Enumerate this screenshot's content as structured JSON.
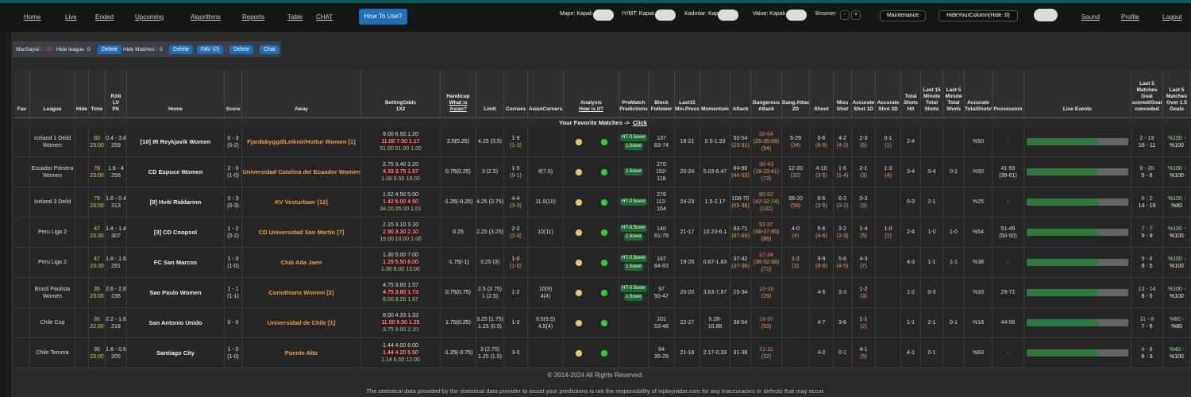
{
  "nav": {
    "items": [
      "Home",
      "Live",
      "Ended",
      "Upcoming",
      "Algorithms",
      "Reports",
      "Table",
      "CHAT"
    ],
    "button": "How To Use?",
    "toggles": [
      "Major: Kapalı",
      "IY/MT: Kapalı",
      "Kadınlar: Kapalı",
      "Value: Kapalı"
    ],
    "browser": "Browser",
    "minus": "-",
    "plus": "+",
    "maintenance": "Maintenance",
    "hide_column": "HideYourColumn(Hide :0)",
    "right": [
      "Sound",
      "Profile",
      "Logout"
    ]
  },
  "toolbar": {
    "count_label": "MacSayisi :",
    "count": "(8)",
    "hide_league": "Hide league :",
    "hide_league_count": "0",
    "delete1": "Delete",
    "hide_matches": "Hide Matches :",
    "hide_matches_count": "0",
    "delete2": "Delete",
    "fav": "FAV (0)",
    "comma": ",",
    "delete3": "Delete",
    "chat": "Chat"
  },
  "table": {
    "headers": [
      [
        "Fav"
      ],
      [
        "League"
      ],
      [
        "Hide"
      ],
      [
        "Time"
      ],
      [
        "RX6",
        "LV",
        "PK"
      ],
      [
        "Home"
      ],
      [
        "Score"
      ],
      [
        "Away"
      ],
      [
        "BettingOdds",
        "1X2"
      ],
      [
        "Handicap",
        "What is",
        "Asian?"
      ],
      [
        "Limit"
      ],
      [
        "Corners"
      ],
      [
        "AsianCorners"
      ],
      [
        "Analysis",
        "How is it?"
      ],
      [
        "PreMatch",
        "Predictions"
      ],
      [
        "Block",
        "Follower"
      ],
      [
        "Last15",
        "Min.Press."
      ],
      [
        "Momentum"
      ],
      [
        "Attack"
      ],
      [
        "Dangerous",
        "Attack"
      ],
      [
        "Dang.Attack",
        "2D"
      ],
      [
        "Shoot"
      ],
      [
        "Miss",
        "Shot"
      ],
      [
        "Accurate",
        "Shot 1D"
      ],
      [
        "Accurate",
        "Shot 2D"
      ],
      [
        "Total",
        "Shots",
        "Hit"
      ],
      [
        "Last 15",
        "Minute",
        "Total",
        "Shots"
      ],
      [
        "Last 5",
        "Minute",
        "Total",
        "Shots"
      ],
      [
        "Accurate",
        "TotalShots%"
      ],
      [
        "Possession"
      ],
      [
        "Live Events"
      ],
      [
        "Last 5",
        "Matches",
        "Goal",
        "scored/Goal",
        "conceded"
      ],
      [
        "Last 5",
        "Matches",
        "Over 1.5",
        "Goals"
      ]
    ],
    "favorite": "Your Favorite Matches ->",
    "favorite_link": "Click",
    "rows": [
      [
        [],
        [
          "Iceland 1 Deild",
          "Women"
        ],
        [],
        [
          "80",
          "23:00"
        ],
        [
          "0.4 - 3.8",
          "259"
        ],
        [
          "[10] IR Reykjavik Women"
        ],
        [
          "0 - 3",
          "(0-2)"
        ],
        [
          "Fjardabyggd/Leiknir/Hottur Women [1]"
        ],
        [
          "9.00 6.50 1.20",
          "11.00 7.50 1.17",
          "51.00 51.00 1.00"
        ],
        [
          "2.5(0.25)"
        ],
        [
          "4.25 (3.5)"
        ],
        [
          "1-9",
          "(1-3)"
        ],
        [],
        [],
        [
          "HT-0.5over",
          "1.5over"
        ],
        [
          "137",
          "63-74"
        ],
        [
          "18-21"
        ],
        [
          "0.5-1.33"
        ],
        [
          "50-54",
          "(23-31)"
        ],
        [
          "30-64",
          "(25-35:69)",
          "(94)"
        ],
        [
          "5-29",
          "(34)"
        ],
        [
          "6-6",
          "(6-5)"
        ],
        [
          "4-2",
          "(4-2)"
        ],
        [
          "2-3",
          "(5)"
        ],
        [
          "0-1",
          "(1)"
        ],
        [
          "2-4"
        ],
        [],
        [],
        [
          "%50"
        ],
        [
          "-"
        ],
        [],
        [
          "2 - 19",
          "16 - 11"
        ],
        [
          "%100 -",
          "%100"
        ]
      ],
      [
        [],
        [
          "Ecuador Primera",
          "Women"
        ],
        [],
        [
          "78",
          "23:00"
        ],
        [
          "1.6 - 4",
          "256"
        ],
        [
          "CD Espuce Women"
        ],
        [
          "2 - 0",
          "(1-0)"
        ],
        [
          "Universidad Catolica del Ecuador Women"
        ],
        [
          "2.75 3.40 2.20",
          "4.33 3.75 1.67",
          "1.08 8.50 19.00"
        ],
        [
          "0.75(0.25)"
        ],
        [
          "3 (2.5)"
        ],
        [
          "1-5",
          "(0-1)"
        ],
        [
          "8(7.5)"
        ],
        [],
        [
          "1.5over"
        ],
        [
          "270",
          "152-",
          "118"
        ],
        [
          "20-24"
        ],
        [
          "5.03-6.47"
        ],
        [
          "84-90",
          "(44-53)"
        ],
        [
          "30-43",
          "(18-23:41)",
          "(73)"
        ],
        [
          "12-20",
          "(32)"
        ],
        [
          "4-10",
          "(3-5)"
        ],
        [
          "1-6",
          "(1-4)"
        ],
        [
          "2-1",
          "(3)"
        ],
        [
          "1-3",
          "(4)"
        ],
        [
          "3-4"
        ],
        [
          "0-4"
        ],
        [
          "0-1"
        ],
        [
          "%50"
        ],
        [
          "41-59",
          "(39-61)"
        ],
        [],
        [
          "8 - 20",
          "5 - 6"
        ],
        [
          "%100 -",
          "%100"
        ]
      ],
      [
        [],
        [
          "Iceland 3 Deild"
        ],
        [],
        [
          "79",
          "23:00"
        ],
        [
          "1.6 - 0.4",
          "313"
        ],
        [
          "[9] Hviti Riddarinn"
        ],
        [
          "0 - 3",
          "(0-3)"
        ],
        [
          "KV Vesturbaer [12]"
        ],
        [
          "1.62 4.50 5.00",
          "1.42 5.00 4.50",
          "34.00 26.00 1.01"
        ],
        [
          "-1.25(-0.25)"
        ],
        [
          "4.25 (3.75)"
        ],
        [
          "4-4",
          "(3-3)"
        ],
        [
          "11.0(10)"
        ],
        [],
        [
          "HT-0.5over"
        ],
        [
          "276",
          "112-",
          "164"
        ],
        [
          "24-23"
        ],
        [
          "1.5-2.17"
        ],
        [
          "108-70",
          "(65-38)"
        ],
        [
          "80-52",
          "(42-32:74)",
          "(132)"
        ],
        [
          "38-20",
          "(58)"
        ],
        [
          "6-6",
          "(3-5)"
        ],
        [
          "6-3",
          "(3-2)"
        ],
        [
          "0-3",
          "(3)"
        ],
        [],
        [
          "0-3"
        ],
        [
          "2-1"
        ],
        [],
        [
          "%25"
        ],
        [
          "-"
        ],
        [],
        [
          "8 - 2",
          "14 - 19"
        ],
        [
          "%100 -",
          "%80"
        ]
      ],
      [
        [],
        [
          "Peru Liga 2"
        ],
        [],
        [
          "47",
          "23:30"
        ],
        [
          "1.4 - 1.4",
          "307"
        ],
        [
          "[3] CD Coopsol"
        ],
        [
          "1 - 2",
          "(0-2)"
        ],
        [
          "CD Universidad San Martin [7]"
        ],
        [
          "2.15 3.10 3.10",
          "2.90 3.30 2.10",
          "19.00 10.00 1.06"
        ],
        [
          "0.25"
        ],
        [
          "2.25 (3.25)"
        ],
        [
          "2-2",
          "(2-4)"
        ],
        [
          "10(11)"
        ],
        [],
        [
          "HT-0.5over",
          "1.5over"
        ],
        [
          "140",
          "61-79"
        ],
        [
          "21-17"
        ],
        [
          "10.23-6.1"
        ],
        [
          "93-71",
          "(87-69)"
        ],
        [
          "52-37",
          "(48-37:85)",
          "(89)"
        ],
        [
          "4-0",
          "(4)"
        ],
        [
          "5-6",
          "(4-6)"
        ],
        [
          "3-2",
          "(2-3)"
        ],
        [
          "1-4",
          "(5)"
        ],
        [
          "1-0",
          "(1)"
        ],
        [
          "2-4"
        ],
        [
          "1-0"
        ],
        [
          "1-0"
        ],
        [
          "%54"
        ],
        [
          "51-49",
          "(50-50)"
        ],
        [],
        [
          "7 - 7",
          "9 - 9"
        ],
        [
          "%100 -",
          "%100"
        ]
      ],
      [
        [],
        [
          "Peru Liga 2"
        ],
        [],
        [
          "47",
          "23:30"
        ],
        [
          "1.8 - 1.6",
          "291"
        ],
        [
          "FC San Marcos"
        ],
        [
          "1 - 0",
          "(1-0)"
        ],
        [
          "Club Ada Jaen"
        ],
        [
          "1.30 5.00 7.00",
          "1.29 5.50 8.00",
          "1.00 8.00 15.00"
        ],
        [
          "-1.75(-1)"
        ],
        [
          "3.25 (3)"
        ],
        [
          "1-0",
          "(1-0)"
        ],
        [],
        [],
        [
          "HT-0.5over",
          "1.5over"
        ],
        [
          "167",
          "84-83"
        ],
        [
          "19-20"
        ],
        [
          "0.67-1.83"
        ],
        [
          "37-42",
          "(37-38)"
        ],
        [
          "37-34",
          "(36-32:68)",
          "(71)"
        ],
        [
          "1-2",
          "(3)"
        ],
        [
          "9-9",
          "(8-8)"
        ],
        [
          "5-6",
          "(4-5)"
        ],
        [
          "4-3",
          "(7)"
        ],
        [],
        [
          "4-3"
        ],
        [
          "1-1"
        ],
        [
          "1-1"
        ],
        [
          "%38"
        ],
        [
          "-"
        ],
        [],
        [
          "9 - 8",
          "8 - 5"
        ],
        [
          "%100 -",
          "%100"
        ]
      ],
      [
        [],
        [
          "Brazil Paulista",
          "Women"
        ],
        [],
        [
          "35",
          "23:00"
        ],
        [
          "2.6 - 2.8",
          "236"
        ],
        [
          "Sao Paulo Women"
        ],
        [
          "1 - 1",
          "(1-1)"
        ],
        [
          "Corinthians Women [2]"
        ],
        [
          "4.75 3.60 1.57",
          "4.75 3.60 1.73",
          "6.00 3.20 1.67"
        ],
        [
          "0.75(0.75)"
        ],
        [
          "2.5 (3.75)",
          "1 (2.5)"
        ],
        [
          "1-2"
        ],
        [
          "10(9)",
          "4(4)"
        ],
        [],
        [
          "HT-0.5over",
          "1.5over"
        ],
        [
          "97",
          "50-47"
        ],
        [
          "20-20"
        ],
        [
          "3.63-7.87"
        ],
        [
          "25-34"
        ],
        [
          "10-19",
          "(29)"
        ],
        [],
        [
          "4-5"
        ],
        [
          "3-3"
        ],
        [
          "1-2",
          "(3)"
        ],
        [],
        [
          "1-2"
        ],
        [
          "0-3"
        ],
        [],
        [
          "%33"
        ],
        [
          "29-71"
        ],
        [],
        [
          "13 - 14",
          "8 - 5"
        ],
        [
          "%100 -",
          "%100"
        ]
      ],
      [
        [],
        [
          "Chile Cup"
        ],
        [],
        [
          "36",
          "22:00"
        ],
        [
          "2.2 - 1.6",
          "218"
        ],
        [
          "San Antonio Unido"
        ],
        [
          "0 - 0"
        ],
        [
          "Universidad de Chile [1]"
        ],
        [
          "8.00 4.33 1.33",
          "11.00 5.50 1.25",
          "3.75 3.00 2.10"
        ],
        [
          "1.75(0.25)"
        ],
        [
          "3.25 (1.75)",
          "1.25 (0.5)"
        ],
        [
          "1-2"
        ],
        [
          "9.5(9.5)",
          "4.5(4)"
        ],
        [],
        [],
        [
          "101",
          "53-48"
        ],
        [
          "22-27"
        ],
        [
          "5.28-",
          "10.88"
        ],
        [
          "38-54"
        ],
        [
          "16-37",
          "(53)"
        ],
        [],
        [
          "4-7"
        ],
        [
          "3-6"
        ],
        [
          "1-1",
          "(2)"
        ],
        [],
        [
          "1-1"
        ],
        [
          "2-1"
        ],
        [
          "0-1"
        ],
        [
          "%18"
        ],
        [
          "44-56"
        ],
        [],
        [
          "11 - 8",
          "7 - 6"
        ],
        [
          "%60 -",
          "%80"
        ]
      ],
      [
        [],
        [
          "Chile Tercera"
        ],
        [],
        [
          "36",
          "23:00"
        ],
        [
          "1.8 - 0.6",
          "205"
        ],
        [
          "Santiago City"
        ],
        [
          "1 - 0",
          "(1-0)"
        ],
        [
          "Puente Alto"
        ],
        [
          "1.44 4.00 6.00",
          "1.44 4.20 5.50",
          "1.14 6.50 12.00"
        ],
        [
          "-1.25(-0.75)"
        ],
        [
          "3 (2.75)",
          "1.25 (1.5)"
        ],
        [
          "3-0"
        ],
        [],
        [],
        [],
        [
          "64",
          "35-29"
        ],
        [
          "21-18"
        ],
        [
          "2.17-0.33"
        ],
        [
          "31-36"
        ],
        [
          "21-11",
          "(32)"
        ],
        [],
        [
          "4-2"
        ],
        [
          "0-1"
        ],
        [
          "4-1",
          "(5)"
        ],
        [],
        [
          "4-1"
        ],
        [
          "0-1"
        ],
        [],
        [
          "%83"
        ],
        [
          "-"
        ],
        [],
        [
          "4 - 8",
          "6 - 3"
        ],
        [
          "%40 -",
          "%100"
        ]
      ]
    ]
  },
  "footer": {
    "copyright": "© 2014-2024 All Rights Reserved.",
    "disclaimer": "The statistical data provided by the statistical data provider to assist your predictions is not the responsibility of inplayradar.com for any inaccuracies or defects that may occur."
  }
}
